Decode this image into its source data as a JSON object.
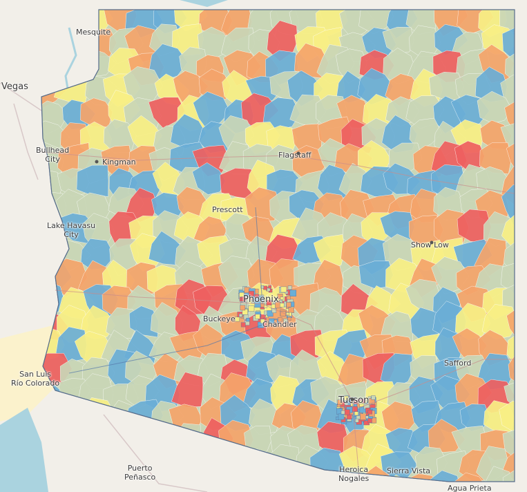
{
  "map": {
    "palette": {
      "background_land": "#f2efe9",
      "water": "#aad3df",
      "desert": "#fbf2cc",
      "state_fill": "#c9d6b6",
      "category_colors": [
        "#6aaed6",
        "#f4a46a",
        "#f7ef84",
        "#ee6060",
        "#c9d6b6"
      ]
    },
    "places": [
      {
        "key": "mesquite",
        "text": "Mesquite"
      },
      {
        "key": "vegas",
        "text": "Vegas"
      },
      {
        "key": "bullhead",
        "text": "Bullhead\nCity"
      },
      {
        "key": "kingman",
        "text": "Kingman"
      },
      {
        "key": "flagstaff",
        "text": "Flagstaff"
      },
      {
        "key": "prescott",
        "text": "Prescott"
      },
      {
        "key": "lake_havasu",
        "text": "Lake Havasu\nCity"
      },
      {
        "key": "show_low",
        "text": "Show Low"
      },
      {
        "key": "phoenix",
        "text": "Phoenix"
      },
      {
        "key": "buckeye",
        "text": "Buckeye"
      },
      {
        "key": "chandler",
        "text": "Chandler"
      },
      {
        "key": "safford",
        "text": "Safford"
      },
      {
        "key": "san_luis",
        "text": "San Luis\nRío Colorado"
      },
      {
        "key": "tucson",
        "text": "Tucson"
      },
      {
        "key": "puerto_penasco",
        "text": "Puerto\nPeñasco"
      },
      {
        "key": "heroica_nogales",
        "text": "Heroica\nNogales"
      },
      {
        "key": "sierra_vista",
        "text": "Sierra Vista"
      },
      {
        "key": "agua_prieta",
        "text": "Agua Prieta"
      }
    ]
  }
}
